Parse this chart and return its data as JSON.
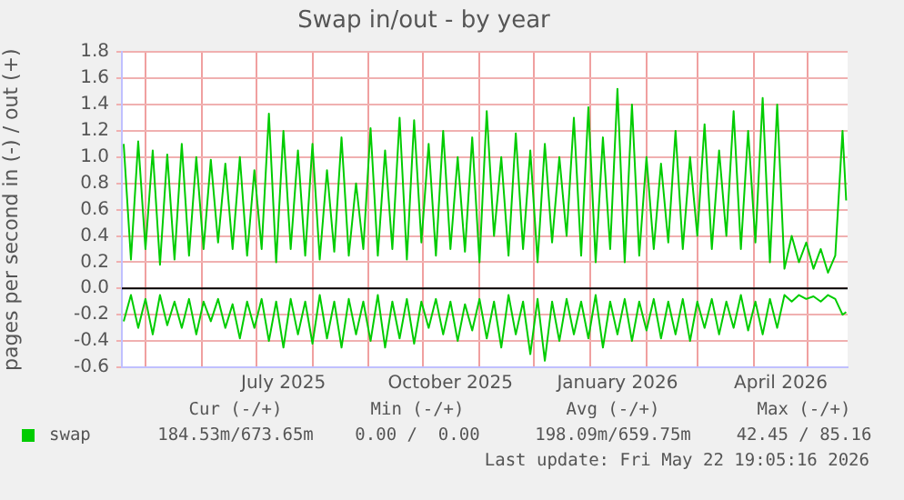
{
  "chart_data": {
    "type": "line",
    "title": "Swap in/out - by year",
    "ylabel": "pages per second in (-) / out (+)",
    "x": [
      "2025-04-19",
      "2025-04-23",
      "2025-04-27",
      "2025-05-01",
      "2025-05-05",
      "2025-05-09",
      "2025-05-13",
      "2025-05-17",
      "2025-05-21",
      "2025-05-25",
      "2025-05-29",
      "2025-06-02",
      "2025-06-06",
      "2025-06-10",
      "2025-06-14",
      "2025-06-18",
      "2025-06-22",
      "2025-06-26",
      "2025-06-30",
      "2025-07-04",
      "2025-07-08",
      "2025-07-12",
      "2025-07-16",
      "2025-07-20",
      "2025-07-24",
      "2025-07-28",
      "2025-08-01",
      "2025-08-05",
      "2025-08-09",
      "2025-08-13",
      "2025-08-17",
      "2025-08-21",
      "2025-08-25",
      "2025-08-29",
      "2025-09-02",
      "2025-09-06",
      "2025-09-10",
      "2025-09-14",
      "2025-09-18",
      "2025-09-22",
      "2025-09-26",
      "2025-09-30",
      "2025-10-04",
      "2025-10-08",
      "2025-10-12",
      "2025-10-16",
      "2025-10-20",
      "2025-10-24",
      "2025-10-28",
      "2025-11-01",
      "2025-11-05",
      "2025-11-09",
      "2025-11-13",
      "2025-11-17",
      "2025-11-21",
      "2025-11-25",
      "2025-11-29",
      "2025-12-03",
      "2025-12-07",
      "2025-12-11",
      "2025-12-15",
      "2025-12-19",
      "2025-12-23",
      "2025-12-27",
      "2025-12-31",
      "2026-01-04",
      "2026-01-08",
      "2026-01-12",
      "2026-01-16",
      "2026-01-20",
      "2026-01-24",
      "2026-01-28",
      "2026-02-01",
      "2026-02-05",
      "2026-02-09",
      "2026-02-13",
      "2026-02-17",
      "2026-02-21",
      "2026-02-25",
      "2026-03-01",
      "2026-03-05",
      "2026-03-09",
      "2026-03-13",
      "2026-03-17",
      "2026-03-21",
      "2026-03-25",
      "2026-03-29",
      "2026-04-02",
      "2026-04-06",
      "2026-04-10",
      "2026-04-14",
      "2026-04-18",
      "2026-04-22",
      "2026-04-26",
      "2026-04-30",
      "2026-05-04",
      "2026-05-08",
      "2026-05-12",
      "2026-05-16",
      "2026-05-20",
      "2026-05-22"
    ],
    "series": [
      {
        "name": "swap",
        "color": "#00cc00",
        "values": [
          1.1,
          0.22,
          1.12,
          0.3,
          1.05,
          0.18,
          1.02,
          0.22,
          1.1,
          0.25,
          1.0,
          0.3,
          0.98,
          0.35,
          0.95,
          0.3,
          1.0,
          0.25,
          0.9,
          0.3,
          1.33,
          0.2,
          1.2,
          0.3,
          1.05,
          0.25,
          1.1,
          0.22,
          0.9,
          0.28,
          1.15,
          0.25,
          0.8,
          0.3,
          1.22,
          0.25,
          1.05,
          0.3,
          1.3,
          0.22,
          1.28,
          0.35,
          1.1,
          0.25,
          1.2,
          0.3,
          1.0,
          0.28,
          1.15,
          0.2,
          1.35,
          0.4,
          1.0,
          0.25,
          1.18,
          0.3,
          1.05,
          0.2,
          1.1,
          0.35,
          1.0,
          0.4,
          1.3,
          0.25,
          1.38,
          0.2,
          1.15,
          0.3,
          1.52,
          0.2,
          1.4,
          0.25,
          1.0,
          0.3,
          0.95,
          0.35,
          1.2,
          0.3,
          1.0,
          0.4,
          1.25,
          0.3,
          1.05,
          0.4,
          1.35,
          0.3,
          1.2,
          0.35,
          1.45,
          0.2,
          1.4,
          0.15,
          0.4,
          0.2,
          0.35,
          0.15,
          0.3,
          0.12,
          0.25,
          1.2,
          0.67
        ]
      },
      {
        "color": "#00cc00",
        "values": [
          -0.25,
          -0.05,
          -0.3,
          -0.08,
          -0.35,
          -0.05,
          -0.28,
          -0.1,
          -0.3,
          -0.08,
          -0.35,
          -0.1,
          -0.25,
          -0.08,
          -0.3,
          -0.12,
          -0.38,
          -0.1,
          -0.3,
          -0.08,
          -0.4,
          -0.1,
          -0.45,
          -0.08,
          -0.35,
          -0.1,
          -0.42,
          -0.05,
          -0.38,
          -0.1,
          -0.45,
          -0.08,
          -0.35,
          -0.1,
          -0.4,
          -0.05,
          -0.45,
          -0.1,
          -0.38,
          -0.08,
          -0.42,
          -0.1,
          -0.3,
          -0.08,
          -0.35,
          -0.1,
          -0.4,
          -0.12,
          -0.32,
          -0.08,
          -0.38,
          -0.1,
          -0.45,
          -0.05,
          -0.35,
          -0.1,
          -0.5,
          -0.08,
          -0.55,
          -0.1,
          -0.4,
          -0.08,
          -0.35,
          -0.1,
          -0.38,
          -0.05,
          -0.45,
          -0.1,
          -0.35,
          -0.08,
          -0.4,
          -0.1,
          -0.32,
          -0.08,
          -0.38,
          -0.1,
          -0.35,
          -0.08,
          -0.4,
          -0.1,
          -0.3,
          -0.08,
          -0.35,
          -0.1,
          -0.3,
          -0.05,
          -0.32,
          -0.1,
          -0.35,
          -0.08,
          -0.3,
          -0.05,
          -0.1,
          -0.05,
          -0.08,
          -0.06,
          -0.1,
          -0.05,
          -0.08,
          -0.2,
          -0.18
        ]
      }
    ],
    "xlim": [
      "2025-04-18",
      "2026-05-22T19:05"
    ],
    "xticks": [
      {
        "value": "2025-05-01",
        "label": null
      },
      {
        "value": "2025-06-01",
        "label": null
      },
      {
        "value": "2025-07-01",
        "label": null
      },
      {
        "value": "2025-07-16",
        "label": "July 2025"
      },
      {
        "value": "2025-08-01",
        "label": null
      },
      {
        "value": "2025-09-01",
        "label": null
      },
      {
        "value": "2025-10-01",
        "label": null
      },
      {
        "value": "2025-10-16",
        "label": "October 2025"
      },
      {
        "value": "2025-11-01",
        "label": null
      },
      {
        "value": "2025-12-01",
        "label": null
      },
      {
        "value": "2026-01-01",
        "label": null
      },
      {
        "value": "2026-01-16",
        "label": "January 2026"
      },
      {
        "value": "2026-02-01",
        "label": null
      },
      {
        "value": "2026-03-01",
        "label": null
      },
      {
        "value": "2026-04-01",
        "label": null
      },
      {
        "value": "2026-04-16",
        "label": "April 2026"
      },
      {
        "value": "2026-05-01",
        "label": null
      }
    ],
    "ylim": [
      -0.6,
      1.8
    ],
    "yticks": [
      {
        "value": -0.6,
        "label": "-0.6"
      },
      {
        "value": -0.4,
        "label": "-0.4"
      },
      {
        "value": -0.2,
        "label": "-0.2"
      },
      {
        "value": 0,
        "label": "0.0"
      },
      {
        "value": 0.2,
        "label": "0.2"
      },
      {
        "value": 0.4,
        "label": "0.4"
      },
      {
        "value": 0.6,
        "label": "0.6"
      },
      {
        "value": 0.8,
        "label": "0.8"
      },
      {
        "value": 1,
        "label": "1.0"
      },
      {
        "value": 1.2,
        "label": "1.2"
      },
      {
        "value": 1.4,
        "label": "1.4"
      },
      {
        "value": 1.6,
        "label": "1.6"
      },
      {
        "value": 1.8,
        "label": "1.8"
      }
    ],
    "ref_lines": [
      {
        "axis": "y",
        "value": 0,
        "color": "#000000"
      }
    ],
    "grid": true,
    "legend": "bottom left",
    "marker": "none",
    "line_style": "solid",
    "annotations": [
      "Cur (-/+)",
      "Min (-/+)",
      "Avg (-/+)",
      "Max (-/+)",
      "184.53m/673.65m",
      "0.00 /  0.00",
      "198.09m/659.75m",
      "42.45 / 85.16",
      "Last update: Fri May 22 19:05:16 2026"
    ]
  }
}
